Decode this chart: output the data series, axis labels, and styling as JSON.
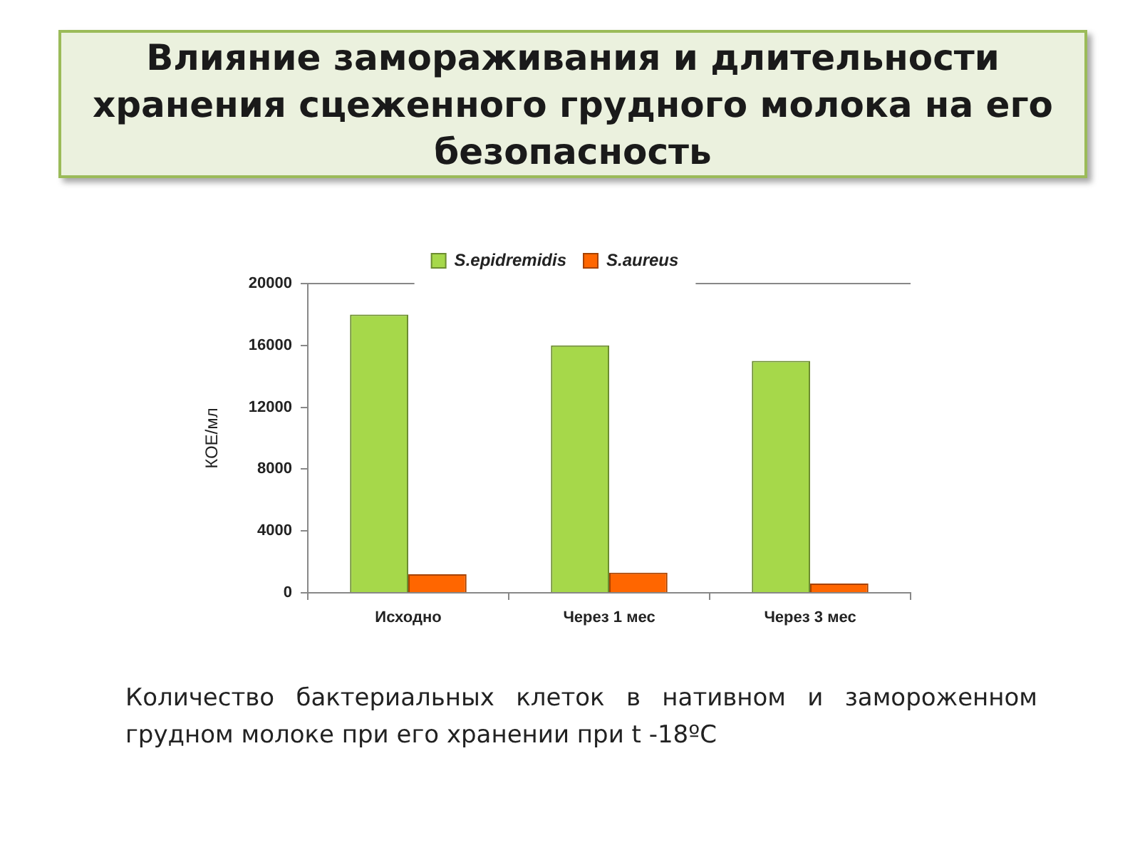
{
  "chart_data": {
    "type": "bar",
    "title": "Влияние замораживания и длительности хранения сцеженного грудного молока на его безопасность",
    "ylabel": "КОЕ/мл",
    "categories": [
      "Исходно",
      "Через 1 мес",
      "Через 3 мес"
    ],
    "series": [
      {
        "name": "S.epidremidis",
        "color": "#a6d84a",
        "values": [
          18000,
          16000,
          15000
        ]
      },
      {
        "name": "S.aureus",
        "color": "#ff6600",
        "values": [
          1200,
          1300,
          600
        ]
      }
    ],
    "ylim": [
      0,
      20000
    ],
    "yticks": [
      0,
      4000,
      8000,
      12000,
      16000,
      20000
    ],
    "grid": false,
    "legend": "top",
    "annotations": [
      "Количество бактериальных клеток в нативном и замороженном грудном молоке при его хранении при t -18ºC"
    ]
  }
}
